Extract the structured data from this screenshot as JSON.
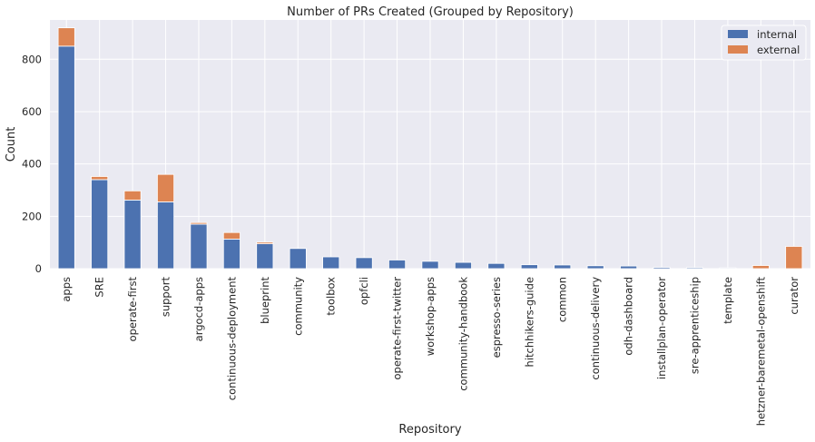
{
  "chart_data": {
    "type": "bar",
    "stacked": true,
    "title": "Number of PRs Created (Grouped by Repository)",
    "xlabel": "Repository",
    "ylabel": "Count",
    "ylim": [
      0,
      950
    ],
    "yticks": [
      0,
      200,
      400,
      600,
      800
    ],
    "grid": true,
    "legend_position": "top-right",
    "categories": [
      "apps",
      "SRE",
      "operate-first",
      "support",
      "argocd-apps",
      "continuous-deployment",
      "blueprint",
      "community",
      "toolbox",
      "opfcli",
      "operate-first-twitter",
      "workshop-apps",
      "community-handbook",
      "espresso-series",
      "hitchhikers-guide",
      "common",
      "continuous-delivery",
      "odh-dashboard",
      "installplan-operator",
      "sre-apprenticeship",
      "template",
      "hetzner-baremetal-openshift",
      "curator"
    ],
    "series": [
      {
        "name": "internal",
        "color": "#4c72b0",
        "values": [
          850,
          340,
          262,
          255,
          170,
          113,
          95,
          77,
          45,
          42,
          33,
          28,
          24,
          20,
          15,
          14,
          11,
          10,
          5,
          4,
          3,
          0,
          0
        ]
      },
      {
        "name": "external",
        "color": "#dd8452",
        "values": [
          70,
          12,
          35,
          105,
          6,
          25,
          6,
          0,
          0,
          0,
          0,
          0,
          0,
          0,
          0,
          0,
          0,
          0,
          0,
          0,
          0,
          12,
          85
        ]
      }
    ]
  }
}
